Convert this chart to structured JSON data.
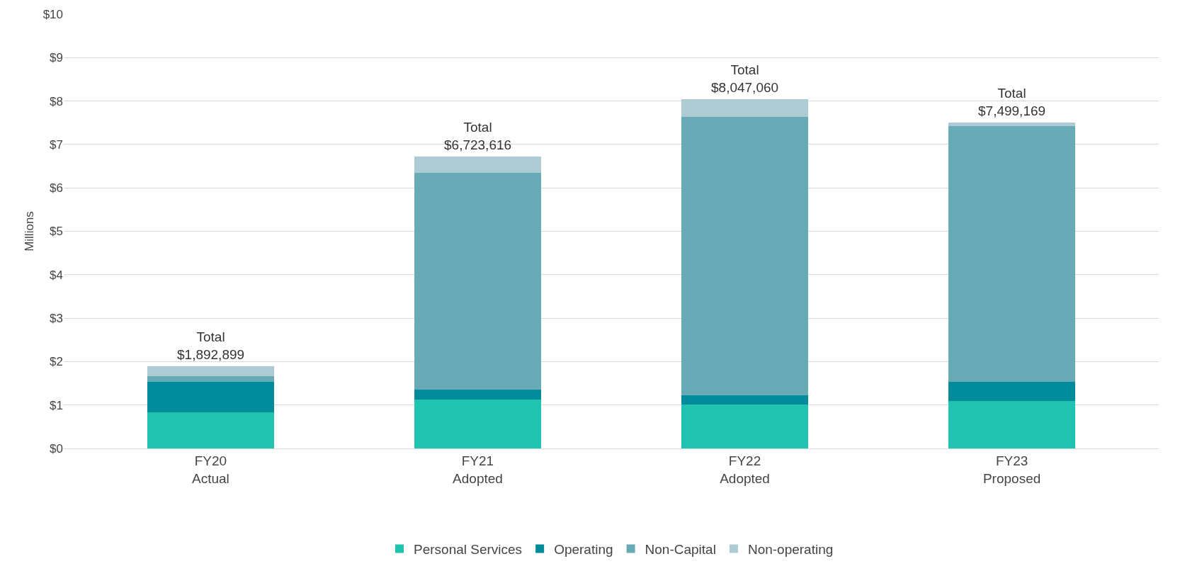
{
  "chart_data": {
    "type": "bar",
    "stacked": true,
    "ylabel": "Millions",
    "categories": [
      "FY20\nActual",
      "FY21\nAdopted",
      "FY22\nAdopted",
      "FY23\nProposed"
    ],
    "series": [
      {
        "name": "Personal Services",
        "color": "#1fc3b0",
        "values": [
          0.83,
          1.12,
          1.01,
          1.1
        ]
      },
      {
        "name": "Operating",
        "color": "#008b9b",
        "values": [
          0.71,
          0.23,
          0.22,
          0.43
        ]
      },
      {
        "name": "Non-Capital",
        "color": "#68aab6",
        "values": [
          0.13,
          5.0,
          6.4,
          5.89
        ]
      },
      {
        "name": "Non-operating",
        "color": "#adcbd2",
        "values": [
          0.22,
          0.37,
          0.42,
          0.08
        ]
      }
    ],
    "totals": [
      "Total\n$1,892,899",
      "Total\n$6,723,616",
      "Total\n$8,047,060",
      "Total\n$7,499,169"
    ],
    "ylim": [
      0,
      10
    ],
    "yticks": [
      {
        "value": 0,
        "label": "$0"
      },
      {
        "value": 1,
        "label": "$1"
      },
      {
        "value": 2,
        "label": "$2"
      },
      {
        "value": 3,
        "label": "$3"
      },
      {
        "value": 4,
        "label": "$4"
      },
      {
        "value": 5,
        "label": "$5"
      },
      {
        "value": 6,
        "label": "$6"
      },
      {
        "value": 7,
        "label": "$7"
      },
      {
        "value": 8,
        "label": "$8"
      },
      {
        "value": 9,
        "label": "$9"
      },
      {
        "value": 10,
        "label": "$10"
      }
    ],
    "grid": "y",
    "legend": "bottom"
  }
}
